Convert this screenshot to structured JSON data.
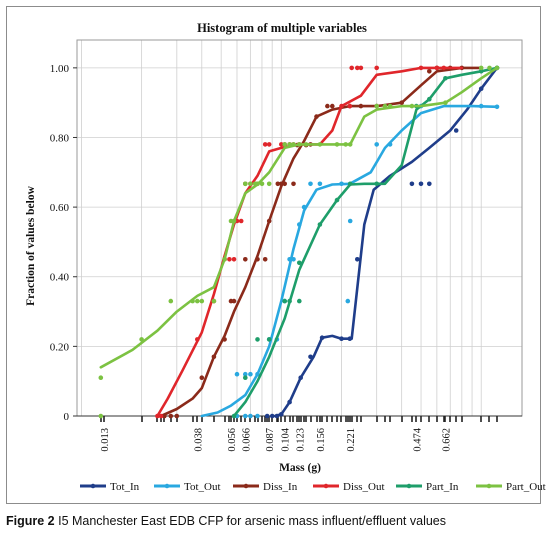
{
  "chart_data": {
    "type": "line",
    "title": "Histogram of multiple variables",
    "xlabel": "Mass (g)",
    "ylabel": "Fraction of values below",
    "xscale": "log",
    "xlim": [
      0.0095,
      1.6
    ],
    "ylim": [
      0,
      1.08
    ],
    "y_ticks": [
      0,
      0.2,
      0.4,
      0.6,
      0.8,
      1.0
    ],
    "y_tick_labels": [
      "0",
      "0.20",
      "0.40",
      "0.60",
      "0.80",
      "1.00"
    ],
    "x_tick_values": [
      0.013,
      0.038,
      0.056,
      0.066,
      0.087,
      0.104,
      0.123,
      0.156,
      0.221,
      0.474,
      0.662
    ],
    "x_tick_labels": [
      "0.013",
      "0.038",
      "0.056",
      "0.066",
      "0.087",
      "0.104",
      "0.123",
      "0.156",
      "0.221",
      "0.474",
      "0.662"
    ],
    "grid": true,
    "legend_position": "bottom",
    "series": [
      {
        "name": "Tot_In",
        "color": "#1f3d8a",
        "line": [
          [
            0.093,
            0
          ],
          [
            0.1,
            0.005
          ],
          [
            0.11,
            0.04
          ],
          [
            0.125,
            0.11
          ],
          [
            0.145,
            0.17
          ],
          [
            0.16,
            0.225
          ],
          [
            0.18,
            0.23
          ],
          [
            0.2,
            0.222
          ],
          [
            0.225,
            0.222
          ],
          [
            0.26,
            0.55
          ],
          [
            0.29,
            0.65
          ],
          [
            0.35,
            0.69
          ],
          [
            0.45,
            0.73
          ],
          [
            0.55,
            0.77
          ],
          [
            0.7,
            0.82
          ],
          [
            0.85,
            0.88
          ],
          [
            1.0,
            0.94
          ],
          [
            1.2,
            1.0
          ]
        ],
        "points": [
          [
            0.085,
            0
          ],
          [
            0.09,
            0
          ],
          [
            0.095,
            0
          ],
          [
            0.1,
            0.005
          ],
          [
            0.11,
            0.04
          ],
          [
            0.125,
            0.11
          ],
          [
            0.14,
            0.17
          ],
          [
            0.16,
            0.225
          ],
          [
            0.2,
            0.222
          ],
          [
            0.22,
            0.222
          ],
          [
            0.24,
            0.45
          ],
          [
            0.45,
            0.667
          ],
          [
            0.5,
            0.667
          ],
          [
            0.55,
            0.667
          ],
          [
            0.75,
            0.82
          ],
          [
            1.0,
            0.94
          ],
          [
            1.2,
            1.0
          ]
        ]
      },
      {
        "name": "Tot_Out",
        "color": "#29a8e0",
        "line": [
          [
            0.04,
            0
          ],
          [
            0.048,
            0.01
          ],
          [
            0.056,
            0.03
          ],
          [
            0.066,
            0.06
          ],
          [
            0.076,
            0.12
          ],
          [
            0.087,
            0.2
          ],
          [
            0.1,
            0.33
          ],
          [
            0.115,
            0.48
          ],
          [
            0.13,
            0.59
          ],
          [
            0.15,
            0.65
          ],
          [
            0.18,
            0.665
          ],
          [
            0.22,
            0.667
          ],
          [
            0.28,
            0.7
          ],
          [
            0.33,
            0.77
          ],
          [
            0.4,
            0.82
          ],
          [
            0.5,
            0.87
          ],
          [
            0.65,
            0.89
          ],
          [
            0.9,
            0.89
          ],
          [
            1.2,
            0.888
          ]
        ],
        "points": [
          [
            0.06,
            0
          ],
          [
            0.066,
            0
          ],
          [
            0.07,
            0
          ],
          [
            0.076,
            0
          ],
          [
            0.06,
            0.12
          ],
          [
            0.066,
            0.12
          ],
          [
            0.07,
            0.12
          ],
          [
            0.076,
            0.12
          ],
          [
            0.087,
            0.22
          ],
          [
            0.095,
            0.22
          ],
          [
            0.104,
            0.33
          ],
          [
            0.11,
            0.45
          ],
          [
            0.115,
            0.45
          ],
          [
            0.123,
            0.55
          ],
          [
            0.13,
            0.6
          ],
          [
            0.14,
            0.667
          ],
          [
            0.156,
            0.667
          ],
          [
            0.2,
            0.667
          ],
          [
            0.221,
            0.56
          ],
          [
            0.215,
            0.33
          ],
          [
            0.3,
            0.78
          ],
          [
            0.35,
            0.78
          ],
          [
            0.5,
            0.89
          ],
          [
            1.0,
            0.89
          ],
          [
            1.2,
            0.888
          ]
        ]
      },
      {
        "name": "Diss_In",
        "color": "#8b2a1a",
        "line": [
          [
            0.025,
            0
          ],
          [
            0.03,
            0.02
          ],
          [
            0.036,
            0.05
          ],
          [
            0.04,
            0.08
          ],
          [
            0.046,
            0.17
          ],
          [
            0.052,
            0.23
          ],
          [
            0.058,
            0.3
          ],
          [
            0.066,
            0.37
          ],
          [
            0.076,
            0.46
          ],
          [
            0.087,
            0.56
          ],
          [
            0.1,
            0.66
          ],
          [
            0.115,
            0.74
          ],
          [
            0.13,
            0.79
          ],
          [
            0.15,
            0.86
          ],
          [
            0.18,
            0.88
          ],
          [
            0.22,
            0.89
          ],
          [
            0.3,
            0.89
          ],
          [
            0.4,
            0.9
          ],
          [
            0.5,
            0.95
          ],
          [
            0.6,
            0.99
          ],
          [
            0.8,
            1.0
          ],
          [
            1.0,
            1.0
          ]
        ],
        "points": [
          [
            0.026,
            0
          ],
          [
            0.028,
            0
          ],
          [
            0.03,
            0
          ],
          [
            0.04,
            0.11
          ],
          [
            0.046,
            0.17
          ],
          [
            0.052,
            0.22
          ],
          [
            0.056,
            0.33
          ],
          [
            0.058,
            0.33
          ],
          [
            0.066,
            0.45
          ],
          [
            0.076,
            0.45
          ],
          [
            0.083,
            0.45
          ],
          [
            0.087,
            0.56
          ],
          [
            0.096,
            0.667
          ],
          [
            0.1,
            0.667
          ],
          [
            0.104,
            0.667
          ],
          [
            0.115,
            0.667
          ],
          [
            0.12,
            0.778
          ],
          [
            0.133,
            0.778
          ],
          [
            0.14,
            0.78
          ],
          [
            0.15,
            0.86
          ],
          [
            0.17,
            0.89
          ],
          [
            0.18,
            0.89
          ],
          [
            0.22,
            0.89
          ],
          [
            0.25,
            0.89
          ],
          [
            0.3,
            0.89
          ],
          [
            0.4,
            0.9
          ],
          [
            0.55,
            0.99
          ],
          [
            0.6,
            1.0
          ],
          [
            0.7,
            1.0
          ],
          [
            0.8,
            1.0
          ]
        ]
      },
      {
        "name": "Diss_Out",
        "color": "#e0262b",
        "line": [
          [
            0.024,
            0
          ],
          [
            0.027,
            0.05
          ],
          [
            0.032,
            0.13
          ],
          [
            0.04,
            0.24
          ],
          [
            0.046,
            0.35
          ],
          [
            0.052,
            0.46
          ],
          [
            0.058,
            0.55
          ],
          [
            0.066,
            0.64
          ],
          [
            0.076,
            0.69
          ],
          [
            0.087,
            0.76
          ],
          [
            0.1,
            0.77
          ],
          [
            0.123,
            0.78
          ],
          [
            0.156,
            0.78
          ],
          [
            0.18,
            0.82
          ],
          [
            0.2,
            0.89
          ],
          [
            0.25,
            0.92
          ],
          [
            0.3,
            0.98
          ],
          [
            0.4,
            0.99
          ],
          [
            0.5,
            1.0
          ],
          [
            0.6,
            1.0
          ],
          [
            0.8,
            1.0
          ]
        ],
        "points": [
          [
            0.024,
            0
          ],
          [
            0.025,
            0
          ],
          [
            0.038,
            0.22
          ],
          [
            0.046,
            0.33
          ],
          [
            0.052,
            0.45
          ],
          [
            0.055,
            0.45
          ],
          [
            0.058,
            0.45
          ],
          [
            0.06,
            0.56
          ],
          [
            0.063,
            0.56
          ],
          [
            0.066,
            0.667
          ],
          [
            0.07,
            0.667
          ],
          [
            0.076,
            0.667
          ],
          [
            0.083,
            0.78
          ],
          [
            0.087,
            0.78
          ],
          [
            0.1,
            0.78
          ],
          [
            0.104,
            0.78
          ],
          [
            0.11,
            0.78
          ],
          [
            0.115,
            0.78
          ],
          [
            0.123,
            0.78
          ],
          [
            0.2,
            0.89
          ],
          [
            0.22,
            0.89
          ],
          [
            0.225,
            1.0
          ],
          [
            0.24,
            1.0
          ],
          [
            0.25,
            1.0
          ],
          [
            0.3,
            1.0
          ],
          [
            0.5,
            1.0
          ],
          [
            0.6,
            1.0
          ],
          [
            0.65,
            1.0
          ]
        ]
      },
      {
        "name": "Part_In",
        "color": "#1e9e6a",
        "line": [
          [
            0.058,
            0
          ],
          [
            0.066,
            0.04
          ],
          [
            0.076,
            0.1
          ],
          [
            0.087,
            0.17
          ],
          [
            0.104,
            0.28
          ],
          [
            0.123,
            0.42
          ],
          [
            0.156,
            0.55
          ],
          [
            0.19,
            0.62
          ],
          [
            0.221,
            0.665
          ],
          [
            0.26,
            0.667
          ],
          [
            0.33,
            0.667
          ],
          [
            0.4,
            0.72
          ],
          [
            0.474,
            0.88
          ],
          [
            0.55,
            0.91
          ],
          [
            0.662,
            0.97
          ],
          [
            0.8,
            0.98
          ],
          [
            1.0,
            0.99
          ],
          [
            1.2,
            1.0
          ]
        ],
        "points": [
          [
            0.058,
            0
          ],
          [
            0.066,
            0.11
          ],
          [
            0.076,
            0.22
          ],
          [
            0.087,
            0.22
          ],
          [
            0.104,
            0.33
          ],
          [
            0.11,
            0.33
          ],
          [
            0.123,
            0.44
          ],
          [
            0.123,
            0.33
          ],
          [
            0.156,
            0.55
          ],
          [
            0.19,
            0.62
          ],
          [
            0.221,
            0.667
          ],
          [
            0.3,
            0.667
          ],
          [
            0.474,
            0.89
          ],
          [
            0.55,
            0.91
          ],
          [
            0.662,
            0.97
          ],
          [
            1.0,
            0.99
          ],
          [
            1.2,
            1.0
          ]
        ]
      },
      {
        "name": "Part_Out",
        "color": "#7cc242",
        "line": [
          [
            0.0125,
            0.14
          ],
          [
            0.018,
            0.19
          ],
          [
            0.024,
            0.245
          ],
          [
            0.03,
            0.3
          ],
          [
            0.038,
            0.345
          ],
          [
            0.046,
            0.37
          ],
          [
            0.052,
            0.45
          ],
          [
            0.058,
            0.56
          ],
          [
            0.066,
            0.64
          ],
          [
            0.076,
            0.665
          ],
          [
            0.087,
            0.7
          ],
          [
            0.104,
            0.77
          ],
          [
            0.123,
            0.78
          ],
          [
            0.156,
            0.78
          ],
          [
            0.221,
            0.78
          ],
          [
            0.26,
            0.86
          ],
          [
            0.3,
            0.88
          ],
          [
            0.4,
            0.89
          ],
          [
            0.5,
            0.89
          ],
          [
            0.662,
            0.9
          ],
          [
            0.8,
            0.93
          ],
          [
            1.0,
            0.97
          ],
          [
            1.2,
            1.0
          ]
        ],
        "points": [
          [
            0.0125,
            0.11
          ],
          [
            0.0125,
            0
          ],
          [
            0.02,
            0.22
          ],
          [
            0.028,
            0.33
          ],
          [
            0.036,
            0.33
          ],
          [
            0.038,
            0.33
          ],
          [
            0.04,
            0.33
          ],
          [
            0.046,
            0.33
          ],
          [
            0.052,
            0.45
          ],
          [
            0.056,
            0.56
          ],
          [
            0.058,
            0.56
          ],
          [
            0.066,
            0.667
          ],
          [
            0.07,
            0.667
          ],
          [
            0.074,
            0.667
          ],
          [
            0.076,
            0.667
          ],
          [
            0.08,
            0.667
          ],
          [
            0.087,
            0.667
          ],
          [
            0.104,
            0.78
          ],
          [
            0.11,
            0.78
          ],
          [
            0.115,
            0.78
          ],
          [
            0.123,
            0.78
          ],
          [
            0.133,
            0.78
          ],
          [
            0.156,
            0.78
          ],
          [
            0.19,
            0.78
          ],
          [
            0.21,
            0.78
          ],
          [
            0.221,
            0.78
          ],
          [
            0.3,
            0.89
          ],
          [
            0.33,
            0.89
          ],
          [
            0.35,
            0.89
          ],
          [
            0.45,
            0.89
          ],
          [
            0.662,
            0.9
          ],
          [
            1.0,
            1.0
          ],
          [
            1.1,
            1.0
          ],
          [
            1.2,
            1.0
          ]
        ]
      }
    ]
  },
  "caption": {
    "label": "Figure 2",
    "text": " I5 Manchester East EDB CFP for arsenic mass influent/effluent values"
  }
}
